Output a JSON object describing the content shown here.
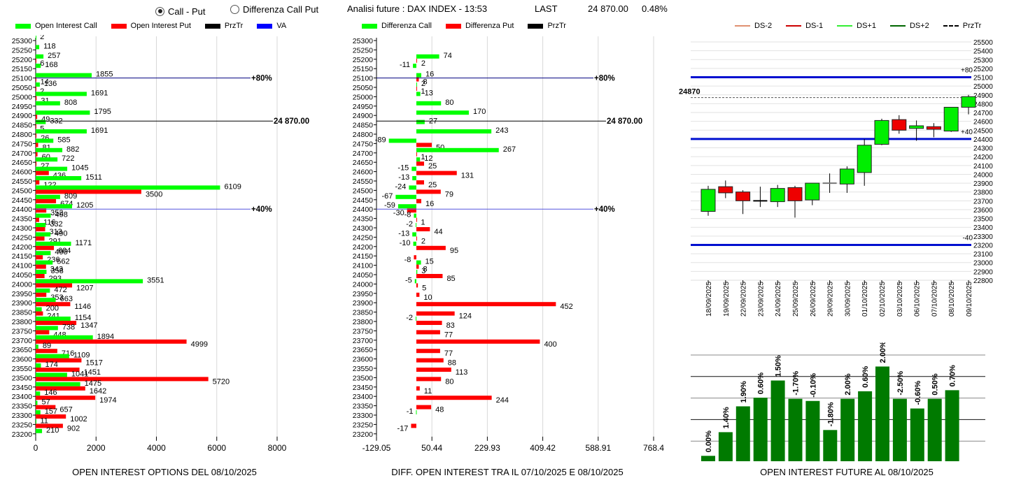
{
  "header": {
    "radio_options": [
      {
        "label": "Call - Put",
        "selected": true
      },
      {
        "label": "Differenza Call Put",
        "selected": false
      }
    ],
    "analysis_title": "Analisi future : DAX INDEX - 13:53",
    "last_label": "LAST",
    "last_value": "24 870.00",
    "last_change": "0.48%"
  },
  "colors": {
    "call": "#00ff00",
    "put": "#ff0000",
    "przTr": "#000000",
    "va": "#0000ff",
    "future_bar": "#007a00",
    "ds_minus2": "#e09070",
    "ds_minus1": "#cc0000",
    "ds_plus1": "#33ee33",
    "ds_plus2": "#006600"
  },
  "chart_data": [
    {
      "id": "oi-options",
      "type": "bar",
      "orientation": "horizontal",
      "title": "OPEN INTEREST OPTIONS DEL 08/10/2025",
      "legend": [
        "Open Interest Call",
        "Open Interest Put",
        "PrzTr",
        "VA"
      ],
      "legend_placement": "top",
      "xlim": [
        0,
        8000
      ],
      "xticks": [
        "0",
        "2000",
        "4000",
        "6000",
        "8000"
      ],
      "categories": [
        25300,
        25250,
        25200,
        25150,
        25100,
        25050,
        25000,
        24950,
        24900,
        24850,
        24800,
        24750,
        24700,
        24650,
        24600,
        24550,
        24500,
        24450,
        24400,
        24350,
        24300,
        24250,
        24200,
        24150,
        24100,
        24050,
        24000,
        23950,
        23900,
        23850,
        23800,
        23750,
        23700,
        23650,
        23600,
        23550,
        23500,
        23450,
        23400,
        23350,
        23300,
        23250,
        23200
      ],
      "series": [
        {
          "name": "Open Interest Call",
          "values": [
            2,
            118,
            257,
            168,
            1855,
            136,
            1691,
            808,
            1795,
            332,
            1691,
            585,
            882,
            722,
            1045,
            1511,
            6109,
            809,
            1205,
            498,
            332,
            490,
            1171,
            495,
            562,
            358,
            3551,
            472,
            663,
            200,
            1154,
            738,
            1894,
            89,
            1109,
            174,
            1041,
            1475,
            146,
            57,
            157,
            11,
            210
          ]
        },
        {
          "name": "Open Interest Put",
          "values": [
            0,
            0,
            6,
            0,
            14,
            2,
            31,
            0,
            49,
            5,
            26,
            81,
            60,
            27,
            436,
            122,
            3500,
            674,
            352,
            116,
            313,
            291,
            604,
            236,
            343,
            293,
            1207,
            353,
            1146,
            241,
            1347,
            448,
            4999,
            716,
            1517,
            1451,
            5720,
            1642,
            1974,
            657,
            1002,
            902,
            0
          ]
        }
      ],
      "annotations": [
        {
          "label": "+80%",
          "level": 25100,
          "color": "#000080"
        },
        {
          "label": "24 870.00",
          "level": 24870,
          "color": "#000000"
        },
        {
          "label": "+40%",
          "level": 24400,
          "color": "#5555dd"
        }
      ]
    },
    {
      "id": "diff-oi",
      "type": "bar",
      "orientation": "horizontal",
      "title": "DIFF. OPEN INTEREST TRA IL 07/10/2025 E 08/10/2025",
      "legend": [
        "Differenza Call",
        "Differenza Put",
        "PrzTr"
      ],
      "legend_placement": "top",
      "xlim": [
        -129.05,
        768.4
      ],
      "xticks": [
        "-129.05",
        "50.44",
        "229.93",
        "409.42",
        "588.91",
        "768.4"
      ],
      "categories": [
        25300,
        25250,
        25200,
        25150,
        25100,
        25050,
        25000,
        24950,
        24900,
        24850,
        24800,
        24750,
        24700,
        24650,
        24600,
        24550,
        24500,
        24450,
        24400,
        24350,
        24300,
        24250,
        24200,
        24150,
        24100,
        24050,
        24000,
        23950,
        23900,
        23850,
        23800,
        23750,
        23700,
        23650,
        23600,
        23550,
        23500,
        23450,
        23400,
        23350,
        23300,
        23250,
        23200
      ],
      "series": [
        {
          "name": "Differenza Call",
          "values": [
            null,
            null,
            74,
            -11,
            16,
            2,
            13,
            80,
            170,
            27,
            243,
            -89,
            267,
            12,
            -15,
            -13,
            -24,
            -67,
            -59,
            -8,
            -2,
            -13,
            -10,
            null,
            15,
            3,
            -5,
            null,
            null,
            null,
            -2,
            null,
            null,
            null,
            null,
            null,
            null,
            null,
            null,
            null,
            -1,
            null,
            null
          ]
        },
        {
          "name": "Differenza Put",
          "values": [
            null,
            null,
            2,
            null,
            8,
            1,
            null,
            null,
            null,
            null,
            null,
            50,
            1,
            25,
            131,
            25,
            79,
            16,
            -30,
            1,
            44,
            2,
            95,
            -8,
            8,
            85,
            5,
            10,
            452,
            124,
            83,
            77,
            400,
            77,
            88,
            113,
            80,
            11,
            244,
            48,
            null,
            -17,
            null
          ]
        }
      ],
      "annotations": [
        {
          "label": "+80%",
          "level": 25100,
          "color": "#000080"
        },
        {
          "label": "24 870.00",
          "level": 24870,
          "color": "#000000"
        },
        {
          "label": "+40%",
          "level": 24400,
          "color": "#5555dd"
        }
      ]
    },
    {
      "id": "candles",
      "type": "candlestick",
      "legend": [
        "DS-2",
        "DS-1",
        "DS+1",
        "DS+2",
        "PrzTr"
      ],
      "legend_placement": "top",
      "ylim": [
        22800,
        25500
      ],
      "yticks": [
        25500,
        25400,
        25300,
        25200,
        25100,
        25000,
        24900,
        24800,
        24700,
        24600,
        24500,
        24400,
        24300,
        24200,
        24100,
        24000,
        23900,
        23800,
        23700,
        23600,
        23500,
        23400,
        23300,
        23200,
        23100,
        23000,
        22900,
        22800
      ],
      "price_label": "24870",
      "price_level": 24870,
      "levels": [
        {
          "label": "+80",
          "value": 25100
        },
        {
          "label": "+40",
          "value": 24400
        },
        {
          "label": "-40",
          "value": 23200
        }
      ],
      "categories": [
        "18/09/2025",
        "19/09/2025",
        "22/09/2025",
        "23/09/2025",
        "24/09/2025",
        "25/09/2025",
        "26/09/2025",
        "29/09/2025",
        "30/09/2025",
        "01/10/2025",
        "02/10/2025",
        "03/10/2025",
        "06/10/2025",
        "07/10/2025",
        "08/10/2025",
        "09/10/2025"
      ],
      "ohlc": [
        [
          23580,
          23870,
          23530,
          23830
        ],
        [
          23860,
          23930,
          23730,
          23790
        ],
        [
          23800,
          23820,
          23550,
          23700
        ],
        [
          23700,
          23860,
          23630,
          23700
        ],
        [
          23690,
          23880,
          23630,
          23840
        ],
        [
          23850,
          23870,
          23510,
          23700
        ],
        [
          23710,
          23900,
          23650,
          23900
        ],
        [
          23900,
          24010,
          23790,
          23900
        ],
        [
          23890,
          24090,
          23790,
          24060
        ],
        [
          24020,
          24400,
          23870,
          24330
        ],
        [
          24340,
          24630,
          24330,
          24610
        ],
        [
          24620,
          24670,
          24460,
          24500
        ],
        [
          24520,
          24610,
          24380,
          24550
        ],
        [
          24540,
          24580,
          24420,
          24510
        ],
        [
          24490,
          24760,
          24480,
          24760
        ],
        [
          24760,
          24900,
          24680,
          24880
        ]
      ]
    },
    {
      "id": "oi-future",
      "type": "bar",
      "title": "OPEN INTEREST FUTURE AL 08/10/2025",
      "categories": [
        "18/09/2025",
        "19/09/2025",
        "22/09/2025",
        "23/09/2025",
        "24/09/2025",
        "25/09/2025",
        "26/09/2025",
        "29/09/2025",
        "30/09/2025",
        "01/10/2025",
        "02/10/2025",
        "03/10/2025",
        "06/10/2025",
        "07/10/2025",
        "08/10/2025"
      ],
      "relative_heights": [
        0.05,
        0.27,
        0.51,
        0.59,
        0.75,
        0.58,
        0.56,
        0.29,
        0.58,
        0.65,
        0.88,
        0.58,
        0.49,
        0.58,
        0.66
      ],
      "labels": [
        "0.00%",
        "1.40%",
        "1.90%",
        "0.60%",
        "1.50%",
        "-1.70%",
        "-0.10%",
        "-1.80%",
        "2.00%",
        "0.60%",
        "2.00%",
        "-2.50%",
        "-0.60%",
        "0.50%",
        "0.70%"
      ]
    }
  ]
}
